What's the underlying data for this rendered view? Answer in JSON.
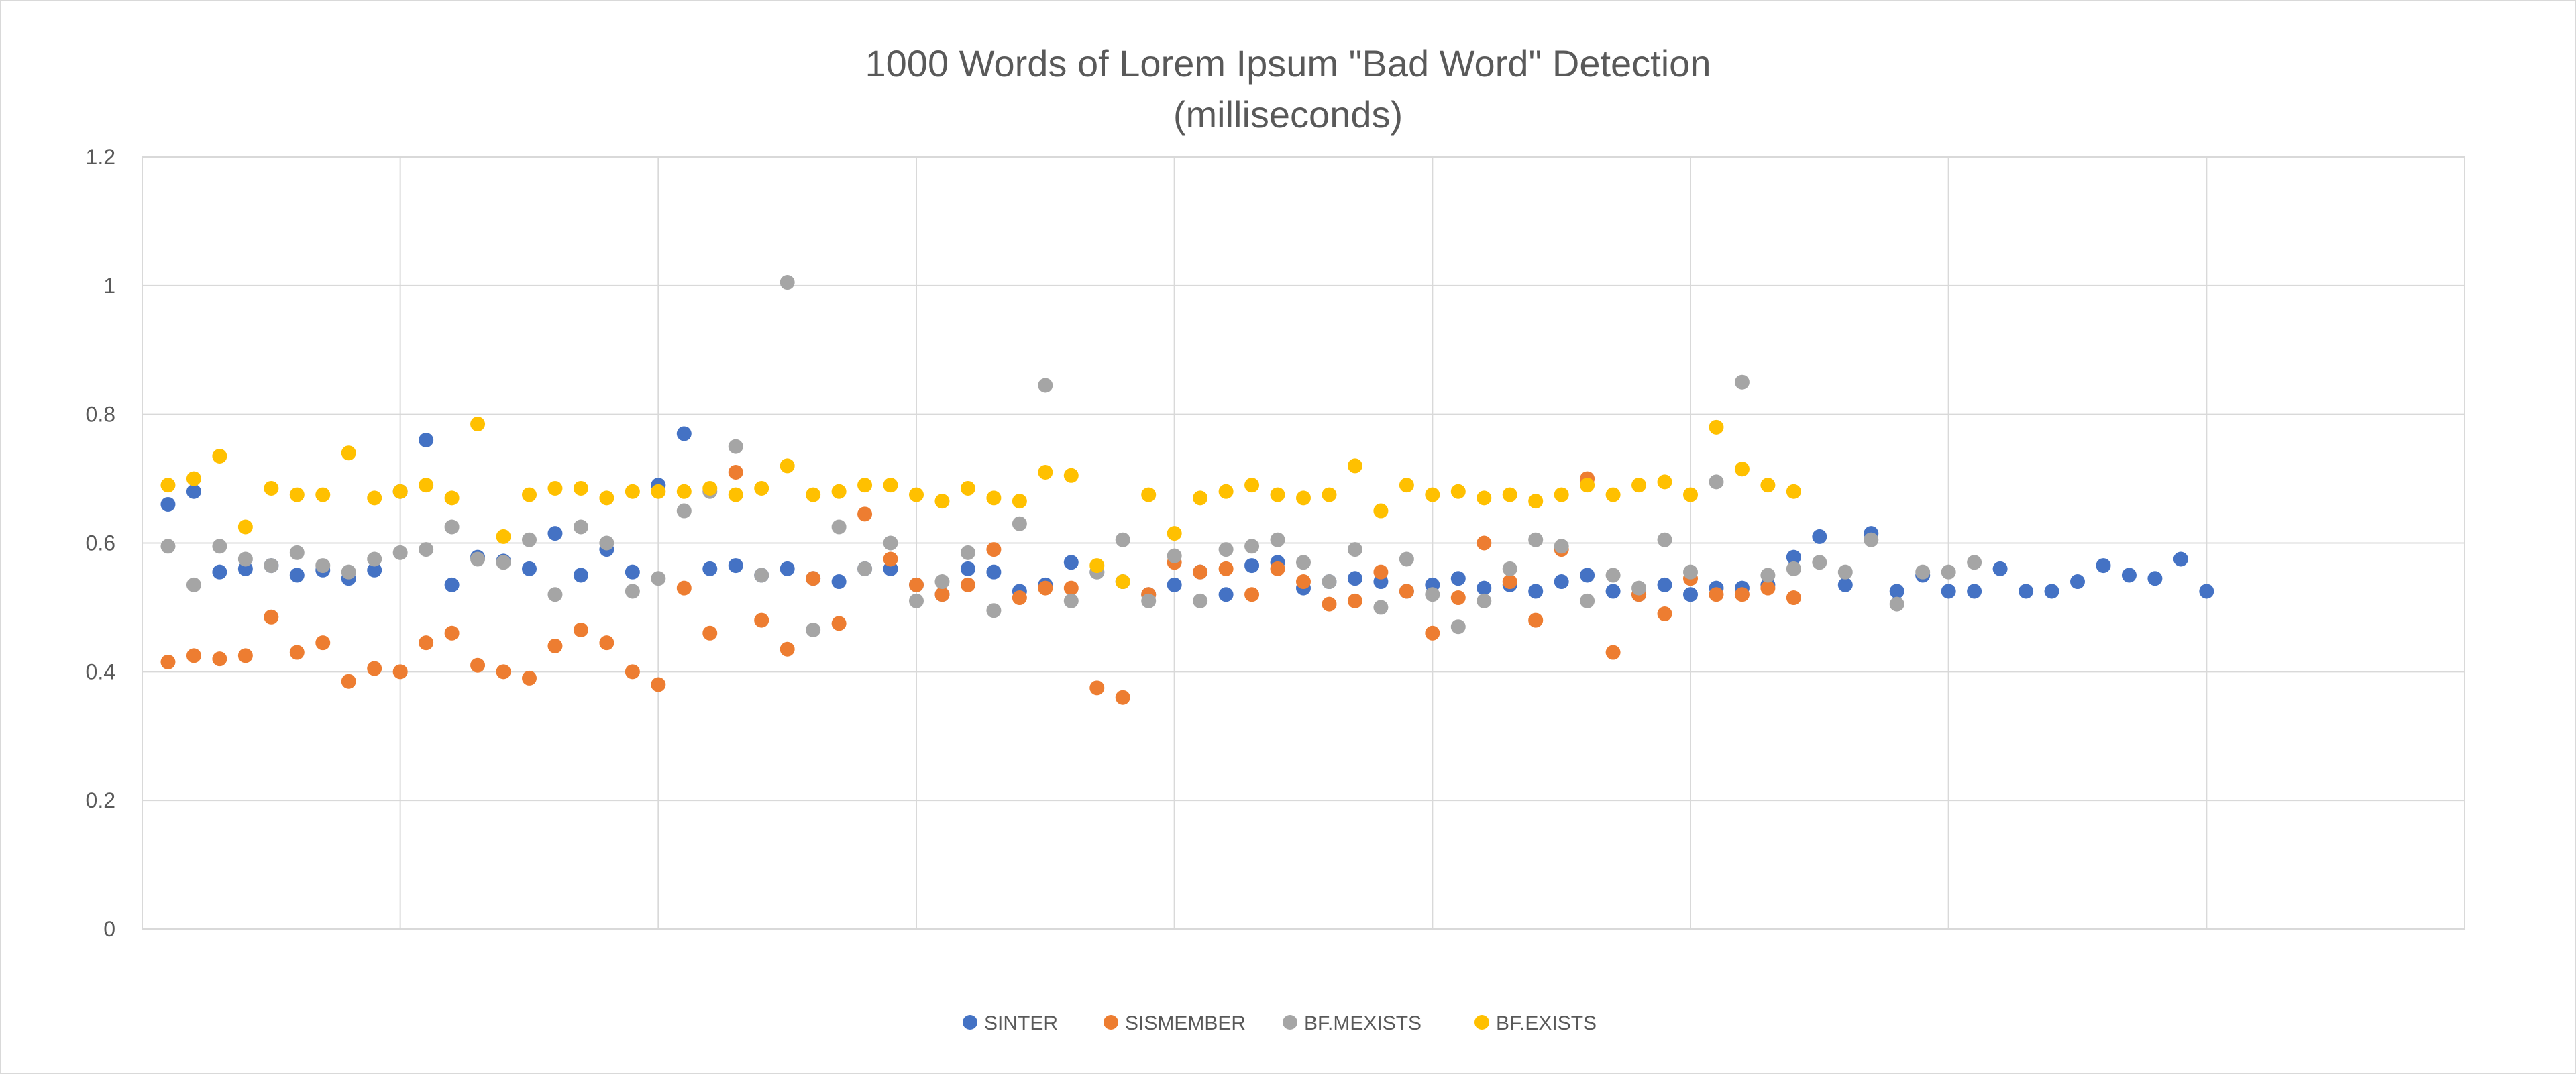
{
  "chart_data": {
    "type": "scatter",
    "title": "1000 Words of Lorem Ipsum \"Bad Word\" Detection",
    "subtitle": "(milliseconds)",
    "xlabel": "",
    "ylabel": "",
    "xlim": [
      0,
      90
    ],
    "ylim": [
      0,
      1.2
    ],
    "y_ticks": [
      "0",
      "0.2",
      "0.4",
      "0.6",
      "0.8",
      "1",
      "1.2"
    ],
    "grid": true,
    "legend_position": "bottom",
    "series": [
      {
        "name": "SINTER",
        "color": "#4472c4",
        "values": [
          0.66,
          0.68,
          0.555,
          0.56,
          0.565,
          0.55,
          0.558,
          0.545,
          0.558,
          0.68,
          0.76,
          0.535,
          0.578,
          0.572,
          0.56,
          0.615,
          0.55,
          0.59,
          0.555,
          0.69,
          0.77,
          0.56,
          0.565,
          0.55,
          0.56,
          0.545,
          0.54,
          0.56,
          0.56,
          0.535,
          0.52,
          0.56,
          0.555,
          0.525,
          0.535,
          0.57,
          0.555,
          0.54,
          0.52,
          0.535,
          0.555,
          0.52,
          0.565,
          0.57,
          0.53,
          0.54,
          0.545,
          0.54,
          0.525,
          0.535,
          0.545,
          0.53,
          0.535,
          0.525,
          0.54,
          0.55,
          0.525,
          0.52,
          0.535,
          0.52,
          0.53,
          0.53,
          0.535,
          0.578,
          0.61,
          0.535,
          0.615,
          0.525,
          0.55,
          0.525,
          0.525,
          0.56,
          0.525,
          0.525,
          0.54,
          0.565,
          0.55,
          0.545,
          0.575,
          0.525
        ]
      },
      {
        "name": "SISMEMBER",
        "color": "#ed7d31",
        "values": [
          0.415,
          0.425,
          0.42,
          0.425,
          0.485,
          0.43,
          0.445,
          0.385,
          0.405,
          0.4,
          0.445,
          0.46,
          0.41,
          0.4,
          0.39,
          0.44,
          0.465,
          0.445,
          0.4,
          0.38,
          0.53,
          0.46,
          0.71,
          0.48,
          0.435,
          0.545,
          0.475,
          0.645,
          0.575,
          0.535,
          0.52,
          0.535,
          0.59,
          0.515,
          0.53,
          0.53,
          0.375,
          0.36,
          0.52,
          0.57,
          0.555,
          0.56,
          0.52,
          0.56,
          0.54,
          0.505,
          0.51,
          0.555,
          0.525,
          0.46,
          0.515,
          0.6,
          0.54,
          0.48,
          0.59,
          0.7,
          0.43,
          0.52,
          0.49,
          0.545,
          0.52,
          0.52,
          0.53,
          0.515
        ]
      },
      {
        "name": "BF.MEXISTS",
        "color": "#a5a5a5",
        "values": [
          0.595,
          0.535,
          0.595,
          0.575,
          0.565,
          0.585,
          0.565,
          0.555,
          0.575,
          0.585,
          0.59,
          0.625,
          0.575,
          0.57,
          0.605,
          0.52,
          0.625,
          0.6,
          0.525,
          0.545,
          0.65,
          0.68,
          0.75,
          0.55,
          1.005,
          0.465,
          0.625,
          0.56,
          0.6,
          0.51,
          0.54,
          0.585,
          0.495,
          0.63,
          0.845,
          0.51,
          0.555,
          0.605,
          0.51,
          0.58,
          0.51,
          0.59,
          0.595,
          0.605,
          0.57,
          0.54,
          0.59,
          0.5,
          0.575,
          0.52,
          0.47,
          0.51,
          0.56,
          0.605,
          0.595,
          0.51,
          0.55,
          0.53,
          0.605,
          0.555,
          0.695,
          0.85,
          0.55,
          0.56,
          0.57,
          0.555,
          0.605,
          0.505,
          0.555,
          0.555,
          0.57
        ]
      },
      {
        "name": "BF.EXISTS",
        "color": "#ffc000",
        "values": [
          0.69,
          0.7,
          0.735,
          0.625,
          0.685,
          0.675,
          0.675,
          0.74,
          0.67,
          0.68,
          0.69,
          0.67,
          0.785,
          0.61,
          0.675,
          0.685,
          0.685,
          0.67,
          0.68,
          0.68,
          0.68,
          0.685,
          0.675,
          0.685,
          0.72,
          0.675,
          0.68,
          0.69,
          0.69,
          0.675,
          0.665,
          0.685,
          0.67,
          0.665,
          0.71,
          0.705,
          0.565,
          0.54,
          0.675,
          0.615,
          0.67,
          0.68,
          0.69,
          0.675,
          0.67,
          0.675,
          0.72,
          0.65,
          0.69,
          0.675,
          0.68,
          0.67,
          0.675,
          0.665,
          0.675,
          0.69,
          0.675,
          0.69,
          0.695,
          0.675,
          0.78,
          0.715,
          0.69,
          0.68
        ]
      }
    ]
  }
}
